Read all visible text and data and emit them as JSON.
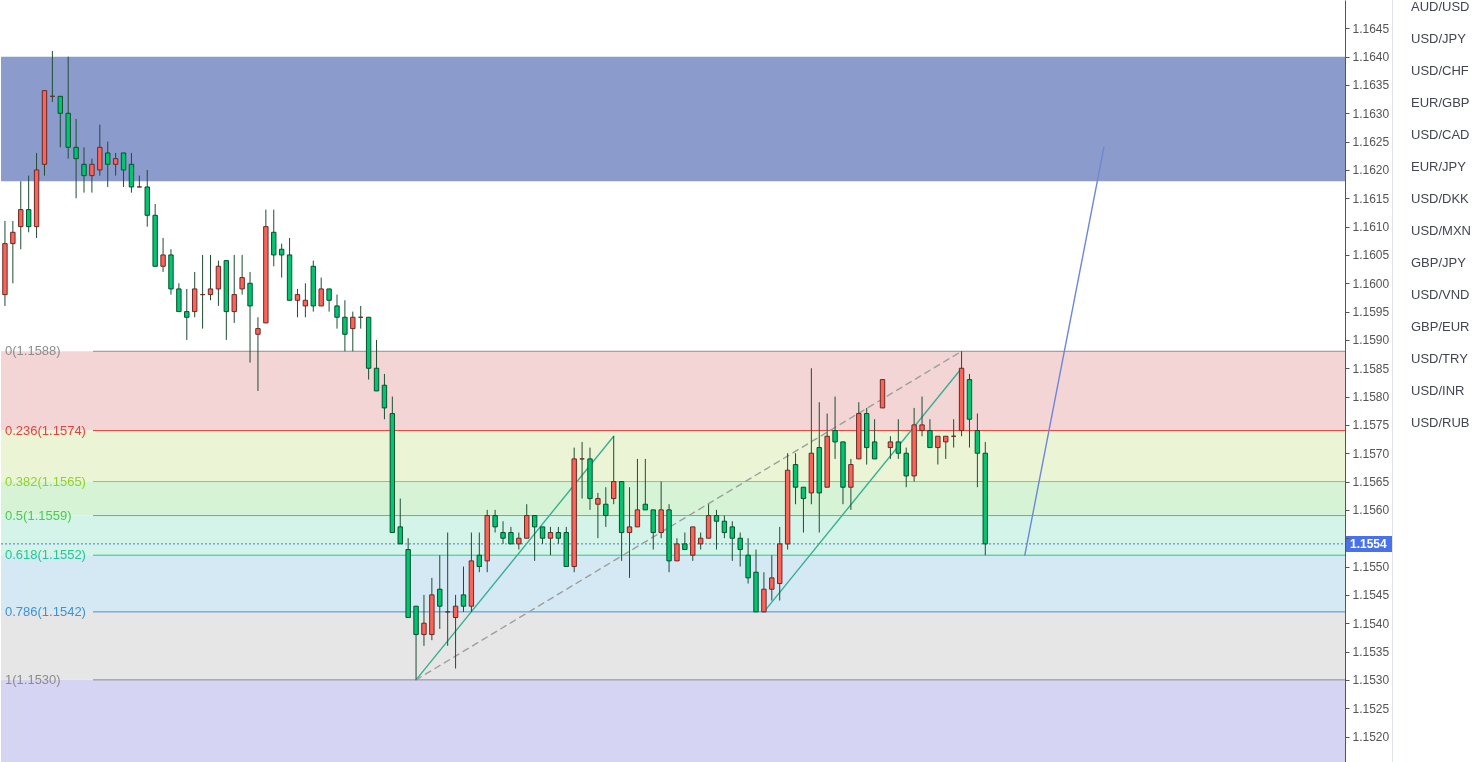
{
  "chart_data": {
    "type": "candlestick",
    "tick_labels": "y",
    "categories": [
      null,
      null,
      null,
      null,
      null,
      null,
      null,
      null,
      null,
      null,
      null,
      null,
      null,
      null,
      null,
      null,
      null,
      null,
      null,
      null,
      null,
      null,
      null,
      null,
      null,
      null,
      null,
      null,
      null,
      null,
      null,
      null,
      null,
      null,
      null,
      null,
      null,
      null,
      null,
      null,
      null,
      null,
      null,
      null,
      null,
      null,
      null,
      null,
      null,
      null,
      null,
      null,
      null,
      null,
      null,
      null,
      null,
      null,
      null,
      null,
      null,
      null,
      null,
      null,
      null,
      null,
      null,
      null,
      null,
      null,
      null,
      null,
      null,
      null,
      null,
      null,
      null,
      null,
      null,
      null,
      null,
      null,
      null,
      null,
      null,
      null,
      null,
      null,
      null,
      null,
      null,
      null,
      null,
      null,
      null,
      null,
      null,
      null,
      null,
      null,
      null,
      null,
      null,
      null,
      null,
      null,
      null,
      null,
      null,
      null,
      null,
      null,
      null,
      null,
      null,
      null,
      null,
      null,
      null,
      null,
      null,
      null,
      null,
      null,
      null,
      null,
      null,
      null,
      null,
      null,
      null,
      null,
      null,
      null,
      null,
      null,
      null,
      null,
      null,
      null,
      null,
      null,
      null,
      null,
      null,
      null,
      null,
      null,
      null,
      null,
      null,
      null,
      null,
      null,
      null,
      null,
      null,
      null,
      null,
      null,
      null,
      null,
      null,
      null,
      null,
      null,
      null,
      null,
      null,
      null
    ],
    "ohlc": [
      [
        1.1598,
        1.1611,
        1.1596,
        1.1607
      ],
      [
        1.1607,
        1.1611,
        1.16,
        1.1609
      ],
      [
        1.161,
        1.1618,
        1.1606,
        1.1613
      ],
      [
        1.1613,
        1.1619,
        1.1609,
        1.161
      ],
      [
        1.161,
        1.1623,
        1.1608,
        1.162
      ],
      [
        1.1621,
        1.1634,
        1.1619,
        1.1634
      ],
      [
        1.1633,
        1.1641,
        1.1632,
        1.1633
      ],
      [
        1.1633,
        1.1633,
        1.1624,
        1.163
      ],
      [
        1.163,
        1.164,
        1.1622,
        1.1624
      ],
      [
        1.1624,
        1.1629,
        1.1615,
        1.1622
      ],
      [
        1.1621,
        1.1624,
        1.1616,
        1.1619
      ],
      [
        1.1619,
        1.1622,
        1.1616,
        1.1621
      ],
      [
        1.162,
        1.1628,
        1.1619,
        1.1624
      ],
      [
        1.1623,
        1.1625,
        1.1617,
        1.1621
      ],
      [
        1.1621,
        1.1623,
        1.1619,
        1.1622
      ],
      [
        1.1623,
        1.1623,
        1.1617,
        1.162
      ],
      [
        1.1621,
        1.1623,
        1.1616,
        1.1617
      ],
      [
        1.1617,
        1.1619,
        1.1617,
        1.1617
      ],
      [
        1.1617,
        1.162,
        1.161,
        1.1612
      ],
      [
        1.1612,
        1.1614,
        1.1603,
        1.1603
      ],
      [
        1.1603,
        1.1608,
        1.1602,
        1.1605
      ],
      [
        1.1605,
        1.1606,
        1.1598,
        1.1599
      ],
      [
        1.1599,
        1.16,
        1.1595,
        1.1595
      ],
      [
        1.1595,
        1.1599,
        1.159,
        1.1594
      ],
      [
        1.1595,
        1.1602,
        1.1594,
        1.1599
      ],
      [
        1.1598,
        1.1605,
        1.1592,
        1.1598
      ],
      [
        1.1598,
        1.1605,
        1.1597,
        1.1599
      ],
      [
        1.1599,
        1.1604,
        1.1596,
        1.1603
      ],
      [
        1.1604,
        1.1604,
        1.159,
        1.1595
      ],
      [
        1.1595,
        1.1605,
        1.1593,
        1.1598
      ],
      [
        1.1599,
        1.1605,
        1.1598,
        1.1601
      ],
      [
        1.16,
        1.1602,
        1.1586,
        1.1596
      ],
      [
        1.1591,
        1.1594,
        1.1581,
        1.1592
      ],
      [
        1.1593,
        1.1613,
        1.1593,
        1.161
      ],
      [
        1.1609,
        1.1613,
        1.1603,
        1.1605
      ],
      [
        1.1606,
        1.1607,
        1.1601,
        1.1605
      ],
      [
        1.1605,
        1.1608,
        1.1597,
        1.1597
      ],
      [
        1.1597,
        1.1599,
        1.1594,
        1.1598
      ],
      [
        1.1596,
        1.16,
        1.1594,
        1.1597
      ],
      [
        1.1603,
        1.1604,
        1.1595,
        1.1596
      ],
      [
        1.1596,
        1.1601,
        1.1596,
        1.1599
      ],
      [
        1.1599,
        1.1599,
        1.1595,
        1.1597
      ],
      [
        1.1596,
        1.1598,
        1.1592,
        1.1594
      ],
      [
        1.1594,
        1.1597,
        1.1588,
        1.1591
      ],
      [
        1.1592,
        1.1595,
        1.1588,
        1.1594
      ],
      [
        1.1594,
        1.1596,
        1.1592,
        1.1594
      ],
      [
        1.1594,
        1.1594,
        1.1583,
        1.1585
      ],
      [
        1.1585,
        1.159,
        1.1581,
        1.1581
      ],
      [
        1.1582,
        1.1584,
        1.1576,
        1.1578
      ],
      [
        1.1577,
        1.158,
        1.1556,
        1.1556
      ],
      [
        1.1557,
        1.1562,
        1.1554,
        1.1554
      ],
      [
        1.1553,
        1.1555,
        1.1541,
        1.1541
      ],
      [
        1.1543,
        1.1543,
        1.153,
        1.1538
      ],
      [
        1.1538,
        1.1545,
        1.1536,
        1.154
      ],
      [
        1.1538,
        1.1548,
        1.1537,
        1.1545
      ],
      [
        1.1546,
        1.1552,
        1.1539,
        1.1543
      ],
      [
        1.1542,
        1.1556,
        1.1536,
        1.1542
      ],
      [
        1.1541,
        1.1545,
        1.1532,
        1.1543
      ],
      [
        1.1545,
        1.155,
        1.1542,
        1.1543
      ],
      [
        1.1543,
        1.1556,
        1.1542,
        1.1551
      ],
      [
        1.1552,
        1.1556,
        1.1549,
        1.155
      ],
      [
        1.1551,
        1.156,
        1.1549,
        1.1559
      ],
      [
        1.1559,
        1.156,
        1.1556,
        1.1557
      ],
      [
        1.1556,
        1.1558,
        1.1554,
        1.1555
      ],
      [
        1.1556,
        1.1557,
        1.1554,
        1.1554
      ],
      [
        1.1554,
        1.1556,
        1.1553,
        1.1555
      ],
      [
        1.1555,
        1.1561,
        1.1555,
        1.1559
      ],
      [
        1.1559,
        1.1559,
        1.1551,
        1.1557
      ],
      [
        1.1557,
        1.1557,
        1.1554,
        1.1555
      ],
      [
        1.1555,
        1.1557,
        1.1552,
        1.1556
      ],
      [
        1.1556,
        1.1557,
        1.1554,
        1.1555
      ],
      [
        1.1556,
        1.1557,
        1.155,
        1.155
      ],
      [
        1.155,
        1.1571,
        1.1549,
        1.1569
      ],
      [
        1.1569,
        1.1572,
        1.1562,
        1.1569
      ],
      [
        1.1569,
        1.1571,
        1.156,
        1.1562
      ],
      [
        1.1561,
        1.1563,
        1.1555,
        1.1562
      ],
      [
        1.1561,
        1.1564,
        1.1557,
        1.1559
      ],
      [
        1.1562,
        1.1573,
        1.1561,
        1.1565
      ],
      [
        1.1565,
        1.1565,
        1.1551,
        1.1556
      ],
      [
        1.1556,
        1.1564,
        1.1548,
        1.1557
      ],
      [
        1.1557,
        1.1569,
        1.1557,
        1.156
      ],
      [
        1.1561,
        1.1569,
        1.156,
        1.156
      ],
      [
        1.156,
        1.156,
        1.1553,
        1.1556
      ],
      [
        1.1556,
        1.1565,
        1.1555,
        1.156
      ],
      [
        1.156,
        1.1561,
        1.1549,
        1.1551
      ],
      [
        1.1551,
        1.1555,
        1.1551,
        1.1554
      ],
      [
        1.1554,
        1.1556,
        1.1553,
        1.1553
      ],
      [
        1.1552,
        1.1557,
        1.1551,
        1.1557
      ],
      [
        1.1554,
        1.1556,
        1.1553,
        1.1555
      ],
      [
        1.1555,
        1.1561,
        1.1555,
        1.1559
      ],
      [
        1.1559,
        1.156,
        1.1553,
        1.1558
      ],
      [
        1.1558,
        1.1559,
        1.1555,
        1.1556
      ],
      [
        1.1557,
        1.1558,
        1.1551,
        1.1555
      ],
      [
        1.1555,
        1.1556,
        1.155,
        1.1553
      ],
      [
        1.1552,
        1.1555,
        1.1547,
        1.1548
      ],
      [
        1.1549,
        1.1553,
        1.1542,
        1.1542
      ],
      [
        1.1542,
        1.1549,
        1.1542,
        1.1546
      ],
      [
        1.1546,
        1.1552,
        1.1544,
        1.1548
      ],
      [
        1.1547,
        1.1557,
        1.1544,
        1.1554
      ],
      [
        1.1554,
        1.157,
        1.1553,
        1.1567
      ],
      [
        1.1568,
        1.157,
        1.1561,
        1.1564
      ],
      [
        1.1564,
        1.1564,
        1.1556,
        1.1562
      ],
      [
        1.1563,
        1.1585,
        1.1561,
        1.157
      ],
      [
        1.1571,
        1.1579,
        1.1556,
        1.1563
      ],
      [
        1.1564,
        1.1577,
        1.1564,
        1.1573
      ],
      [
        1.1574,
        1.158,
        1.1569,
        1.1572
      ],
      [
        1.1572,
        1.1572,
        1.1561,
        1.1564
      ],
      [
        1.1564,
        1.1569,
        1.156,
        1.1568
      ],
      [
        1.1569,
        1.1579,
        1.1569,
        1.1577
      ],
      [
        1.1577,
        1.1578,
        1.1568,
        1.1571
      ],
      [
        1.1572,
        1.1576,
        1.1569,
        1.1569
      ],
      [
        1.1578,
        1.1583,
        1.1578,
        1.1583
      ],
      [
        1.1571,
        1.1573,
        1.1569,
        1.1572
      ],
      [
        1.1572,
        1.1576,
        1.1569,
        1.157
      ],
      [
        1.157,
        1.1571,
        1.1564,
        1.1566
      ],
      [
        1.1566,
        1.1578,
        1.1565,
        1.1575
      ],
      [
        1.1574,
        1.158,
        1.1573,
        1.1575
      ],
      [
        1.1574,
        1.1576,
        1.1571,
        1.1571
      ],
      [
        1.1571,
        1.1573,
        1.1568,
        1.1573
      ],
      [
        1.1572,
        1.1573,
        1.1569,
        1.1573
      ],
      [
        1.1573,
        1.1576,
        1.1571,
        1.1573
      ],
      [
        1.1574,
        1.1588,
        1.1573,
        1.1585
      ],
      [
        1.1583,
        1.1584,
        1.1571,
        1.1576
      ],
      [
        1.1574,
        1.1577,
        1.1564,
        1.157
      ],
      [
        1.157,
        1.1572,
        1.1552,
        1.1554
      ],
      null,
      null,
      null,
      null,
      null,
      null,
      null,
      null,
      null,
      null,
      null,
      null,
      null,
      null,
      null,
      null,
      null,
      null,
      null,
      null,
      null,
      null,
      null,
      null,
      null,
      null,
      null,
      null,
      null,
      null,
      null,
      null,
      null,
      null,
      null,
      null,
      null,
      null,
      null,
      null,
      null,
      null,
      null,
      null,
      null
    ],
    "colors": [
      "#fb6559",
      "#fb6559",
      "#fb6559",
      "#03c470",
      "#fb6559",
      "#fb6559",
      "#6b2a25",
      "#03c470",
      "#03c470",
      "#03c470",
      "#03c470",
      "#fb6559",
      "#fb6559",
      "#03c470",
      "#fb6559",
      "#03c470",
      "#03c470",
      "#6b2a25",
      "#03c470",
      "#03c470",
      "#fb6559",
      "#03c470",
      "#03c470",
      "#03c470",
      "#fb6559",
      "#6b2a25",
      "#fb6559",
      "#fb6559",
      "#03c470",
      "#fb6559",
      "#fb6559",
      "#03c470",
      "#fb6559",
      "#fb6559",
      "#03c470",
      "#03c470",
      "#03c470",
      "#fb6559",
      "#fb6559",
      "#03c470",
      "#fb6559",
      "#03c470",
      "#03c470",
      "#03c470",
      "#fb6559",
      "#6b2a25",
      "#03c470",
      "#03c470",
      "#03c470",
      "#03c470",
      "#03c470",
      "#03c470",
      "#03c470",
      "#fb6559",
      "#fb6559",
      "#03c470",
      "#6b2a25",
      "#fb6559",
      "#03c470",
      "#fb6559",
      "#03c470",
      "#fb6559",
      "#03c470",
      "#03c470",
      "#03c470",
      "#fb6559",
      "#fb6559",
      "#03c470",
      "#03c470",
      "#fb6559",
      "#03c470",
      "#03c470",
      "#fb6559",
      "#6b2a25",
      "#03c470",
      "#fb6559",
      "#03c470",
      "#fb6559",
      "#03c470",
      "#fb6559",
      "#fb6559",
      "#03c470",
      "#03c470",
      "#fb6559",
      "#03c470",
      "#fb6559",
      "#03c470",
      "#fb6559",
      "#fb6559",
      "#fb6559",
      "#03c470",
      "#03c470",
      "#03c470",
      "#03c470",
      "#03c470",
      "#03c470",
      "#fb6559",
      "#fb6559",
      "#fb6559",
      "#fb6559",
      "#03c470",
      "#03c470",
      "#fb6559",
      "#03c470",
      "#fb6559",
      "#03c470",
      "#03c470",
      "#fb6559",
      "#fb6559",
      "#03c470",
      "#03c470",
      "#fb6559",
      "#fb6559",
      "#03c470",
      "#03c470",
      "#fb6559",
      "#fb6559",
      "#03c470",
      "#fb6559",
      "#fb6559",
      "#6b2a25",
      "#fb6559",
      "#03c470",
      "#03c470",
      "#03c470",
      null,
      null,
      null,
      null,
      null,
      null,
      null,
      null,
      null,
      null,
      null,
      null,
      null,
      null,
      null,
      null,
      null,
      null,
      null,
      null,
      null,
      null,
      null,
      null,
      null,
      null,
      null,
      null,
      null,
      null,
      null,
      null,
      null,
      null,
      null,
      null,
      null,
      null,
      null,
      null,
      null,
      null,
      null,
      null,
      null
    ],
    "series": [
      {
        "type": "line",
        "color": "#3aaf92",
        "values": [
          null,
          null,
          null,
          null,
          null,
          null,
          null,
          null,
          null,
          null,
          null,
          null,
          null,
          null,
          null,
          null,
          null,
          null,
          null,
          null,
          null,
          null,
          null,
          null,
          null,
          null,
          null,
          null,
          null,
          null,
          null,
          null,
          null,
          null,
          null,
          null,
          null,
          null,
          null,
          null,
          null,
          null,
          null,
          null,
          null,
          null,
          null,
          null,
          null,
          null,
          null,
          null,
          1.153,
          null,
          null,
          null,
          null,
          null,
          null,
          null,
          null,
          null,
          null,
          null,
          null,
          null,
          null,
          null,
          null,
          null,
          null,
          null,
          null,
          null,
          null,
          null,
          null,
          1.1573,
          null,
          null,
          null,
          null,
          null,
          null,
          null,
          null,
          null,
          null,
          null,
          null,
          null,
          null,
          null,
          null,
          null,
          null,
          null,
          null,
          null,
          null,
          null,
          null,
          null,
          null,
          null,
          null,
          null,
          null,
          null,
          null,
          null,
          null,
          null,
          null,
          null,
          null,
          null,
          null,
          null,
          null,
          null,
          null,
          null,
          null,
          null,
          null,
          null,
          null,
          null,
          null,
          null,
          null,
          null,
          null,
          null,
          null,
          null,
          null,
          null,
          null,
          null,
          null,
          null,
          null,
          null,
          null,
          null,
          null,
          null,
          null,
          null,
          null,
          null,
          null,
          null,
          null,
          null,
          null,
          null,
          null,
          null,
          null,
          null,
          null,
          null,
          null,
          null,
          null,
          null,
          null
        ]
      },
      {
        "type": "line",
        "color": "#3aaf92",
        "values": [
          null,
          null,
          null,
          null,
          null,
          null,
          null,
          null,
          null,
          null,
          null,
          null,
          null,
          null,
          null,
          null,
          null,
          null,
          null,
          null,
          null,
          null,
          null,
          null,
          null,
          null,
          null,
          null,
          null,
          null,
          null,
          null,
          null,
          null,
          null,
          null,
          null,
          null,
          null,
          null,
          null,
          null,
          null,
          null,
          null,
          null,
          null,
          null,
          null,
          null,
          null,
          null,
          null,
          null,
          null,
          null,
          null,
          null,
          null,
          null,
          null,
          null,
          null,
          null,
          null,
          null,
          null,
          null,
          null,
          null,
          null,
          null,
          null,
          null,
          null,
          null,
          null,
          null,
          null,
          null,
          null,
          null,
          null,
          null,
          null,
          null,
          null,
          null,
          null,
          null,
          null,
          null,
          null,
          null,
          null,
          null,
          1.1542,
          null,
          null,
          null,
          null,
          null,
          null,
          null,
          null,
          null,
          null,
          null,
          null,
          null,
          null,
          null,
          null,
          null,
          null,
          null,
          null,
          null,
          null,
          null,
          null,
          1.1585,
          null,
          null,
          null,
          null,
          null,
          null,
          null,
          null,
          null,
          null,
          null,
          null,
          null,
          null,
          null,
          null,
          null,
          null,
          null,
          null,
          null,
          null,
          null,
          null,
          null,
          null,
          null,
          null,
          null,
          null,
          null,
          null,
          null,
          null,
          null,
          null,
          null,
          null,
          null,
          null,
          null,
          null,
          null,
          null,
          null,
          null,
          null,
          null
        ]
      },
      {
        "type": "line",
        "color": "#9e9e9e",
        "line_style": "dashed",
        "values": [
          null,
          null,
          null,
          null,
          null,
          null,
          null,
          null,
          null,
          null,
          null,
          null,
          null,
          null,
          null,
          null,
          null,
          null,
          null,
          null,
          null,
          null,
          null,
          null,
          null,
          null,
          null,
          null,
          null,
          null,
          null,
          null,
          null,
          null,
          null,
          null,
          null,
          null,
          null,
          null,
          null,
          null,
          null,
          null,
          null,
          null,
          null,
          null,
          null,
          null,
          null,
          null,
          1.153,
          null,
          null,
          null,
          null,
          null,
          null,
          null,
          null,
          null,
          null,
          null,
          null,
          null,
          null,
          null,
          null,
          null,
          null,
          null,
          null,
          null,
          null,
          null,
          null,
          null,
          null,
          null,
          null,
          null,
          null,
          null,
          null,
          null,
          null,
          null,
          null,
          null,
          null,
          null,
          null,
          null,
          null,
          null,
          null,
          null,
          null,
          null,
          null,
          null,
          null,
          null,
          null,
          null,
          null,
          null,
          null,
          null,
          null,
          null,
          null,
          null,
          null,
          null,
          null,
          null,
          null,
          null,
          null,
          1.1588,
          null,
          null,
          null,
          null,
          null,
          null,
          null,
          null,
          null,
          null,
          null,
          null,
          null,
          null,
          null,
          null,
          null,
          null,
          null,
          null,
          null,
          null,
          null,
          null,
          null,
          null,
          null,
          null,
          null,
          null,
          null,
          null,
          null,
          null,
          null,
          null,
          null,
          null,
          null,
          null,
          null,
          null,
          null,
          null,
          null,
          null,
          null,
          null
        ]
      },
      {
        "type": "line",
        "color": "#6d87d6",
        "values": [
          null,
          null,
          null,
          null,
          null,
          null,
          null,
          null,
          null,
          null,
          null,
          null,
          null,
          null,
          null,
          null,
          null,
          null,
          null,
          null,
          null,
          null,
          null,
          null,
          null,
          null,
          null,
          null,
          null,
          null,
          null,
          null,
          null,
          null,
          null,
          null,
          null,
          null,
          null,
          null,
          null,
          null,
          null,
          null,
          null,
          null,
          null,
          null,
          null,
          null,
          null,
          null,
          null,
          null,
          null,
          null,
          null,
          null,
          null,
          null,
          null,
          null,
          null,
          null,
          null,
          null,
          null,
          null,
          null,
          null,
          null,
          null,
          null,
          null,
          null,
          null,
          null,
          null,
          null,
          null,
          null,
          null,
          null,
          null,
          null,
          null,
          null,
          null,
          null,
          null,
          null,
          null,
          null,
          null,
          null,
          null,
          null,
          null,
          null,
          null,
          null,
          null,
          null,
          null,
          null,
          null,
          null,
          null,
          null,
          null,
          null,
          null,
          null,
          null,
          null,
          null,
          null,
          null,
          null,
          null,
          null,
          null,
          null,
          null,
          null,
          null,
          null,
          null,
          null,
          1.1552,
          null,
          null,
          null,
          null,
          null,
          null,
          null,
          null,
          null,
          1.1624,
          null,
          null,
          null,
          null,
          null,
          null,
          null,
          null,
          null,
          null,
          null,
          null,
          null,
          null,
          null,
          null,
          null,
          null,
          null,
          null,
          null,
          null,
          null,
          null,
          null,
          null,
          null,
          null,
          null,
          null
        ]
      }
    ],
    "ylim": [
      1.15155,
      1.165
    ],
    "yticks": [
      {
        "value": 1.152,
        "label": "1.1520"
      },
      1.1525,
      {
        "value": 1.153,
        "label": "1.1530"
      },
      1.1535,
      {
        "value": 1.154,
        "label": "1.1540"
      },
      1.1545,
      {
        "value": 1.155,
        "label": "1.1550"
      },
      {
        "value": 1.1555,
        "label": null
      },
      {
        "value": 1.156,
        "label": "1.1560"
      },
      1.1565,
      {
        "value": 1.157,
        "label": "1.1570"
      },
      1.1575,
      {
        "value": 1.158,
        "label": "1.1580"
      },
      1.1585,
      {
        "value": 1.159,
        "label": "1.1590"
      },
      1.1595,
      {
        "value": 1.16,
        "label": "1.1600"
      },
      1.1605,
      {
        "value": 1.161,
        "label": "1.1610"
      },
      1.1615,
      {
        "value": 1.162,
        "label": "1.1620"
      },
      1.1625,
      {
        "value": 1.163,
        "label": "1.1630"
      },
      1.1635,
      {
        "value": 1.164,
        "label": "1.1640"
      },
      1.1645
    ],
    "bands": [
      {
        "axis": "y",
        "from": 1.1618,
        "to": 1.164,
        "color": "#8b9bcb"
      },
      {
        "axis": "y",
        "from": 1.1574,
        "to": 1.1588,
        "color": "#f3d5d5"
      },
      {
        "axis": "y",
        "from": 1.1565,
        "to": 1.1574,
        "color": "#ebf5d6"
      },
      {
        "axis": "y",
        "from": 1.1559,
        "to": 1.1565,
        "color": "#d6f3d6"
      },
      {
        "axis": "y",
        "from": 1.1552,
        "to": 1.1559,
        "color": "#d5f4e9"
      },
      {
        "axis": "y",
        "from": 1.1542,
        "to": 1.1552,
        "color": "#d5e9f4"
      },
      {
        "axis": "y",
        "from": 1.153,
        "to": 1.1542,
        "color": "#e6e6e6"
      },
      {
        "axis": "y",
        "from": 1.15155,
        "to": 1.153,
        "color": "#d5d5f3"
      }
    ],
    "ref_lines": [
      {
        "axis": "y",
        "value": 1.1588,
        "label": "0(1.1588)",
        "color": "#8c8c8c"
      },
      {
        "axis": "y",
        "value": 1.1574,
        "label": "0.236(1.1574)",
        "color": "#e0443c"
      },
      {
        "axis": "y",
        "value": 1.1565,
        "label": "0.382(1.1565)",
        "color": "#8fd22a"
      },
      {
        "axis": "y",
        "value": 1.1559,
        "label": "0.5(1.1559)",
        "color": "#4ccb4c"
      },
      {
        "axis": "y",
        "value": 1.1552,
        "label": "0.618(1.1552)",
        "color": "#22c995"
      },
      {
        "axis": "y",
        "value": 1.1542,
        "label": "0.786(1.1542)",
        "color": "#3d93d3"
      },
      {
        "axis": "y",
        "value": 1.153,
        "label": "1(1.1530)",
        "color": "#8c8c8c"
      },
      {
        "axis": "y",
        "value": 1.1554,
        "label": "1.1554",
        "color": "#4a72e8",
        "line_style": "dotted"
      }
    ],
    "annotations": [
      "AUD/USD",
      "USD/JPY",
      "USD/CHF",
      "EUR/GBP",
      "USD/CAD",
      "EUR/JPY",
      "USD/DKK",
      "USD/MXN",
      "GBP/JPY",
      "USD/VND",
      "GBP/EUR",
      "USD/TRY",
      "USD/INR",
      "USD/RUB"
    ]
  }
}
